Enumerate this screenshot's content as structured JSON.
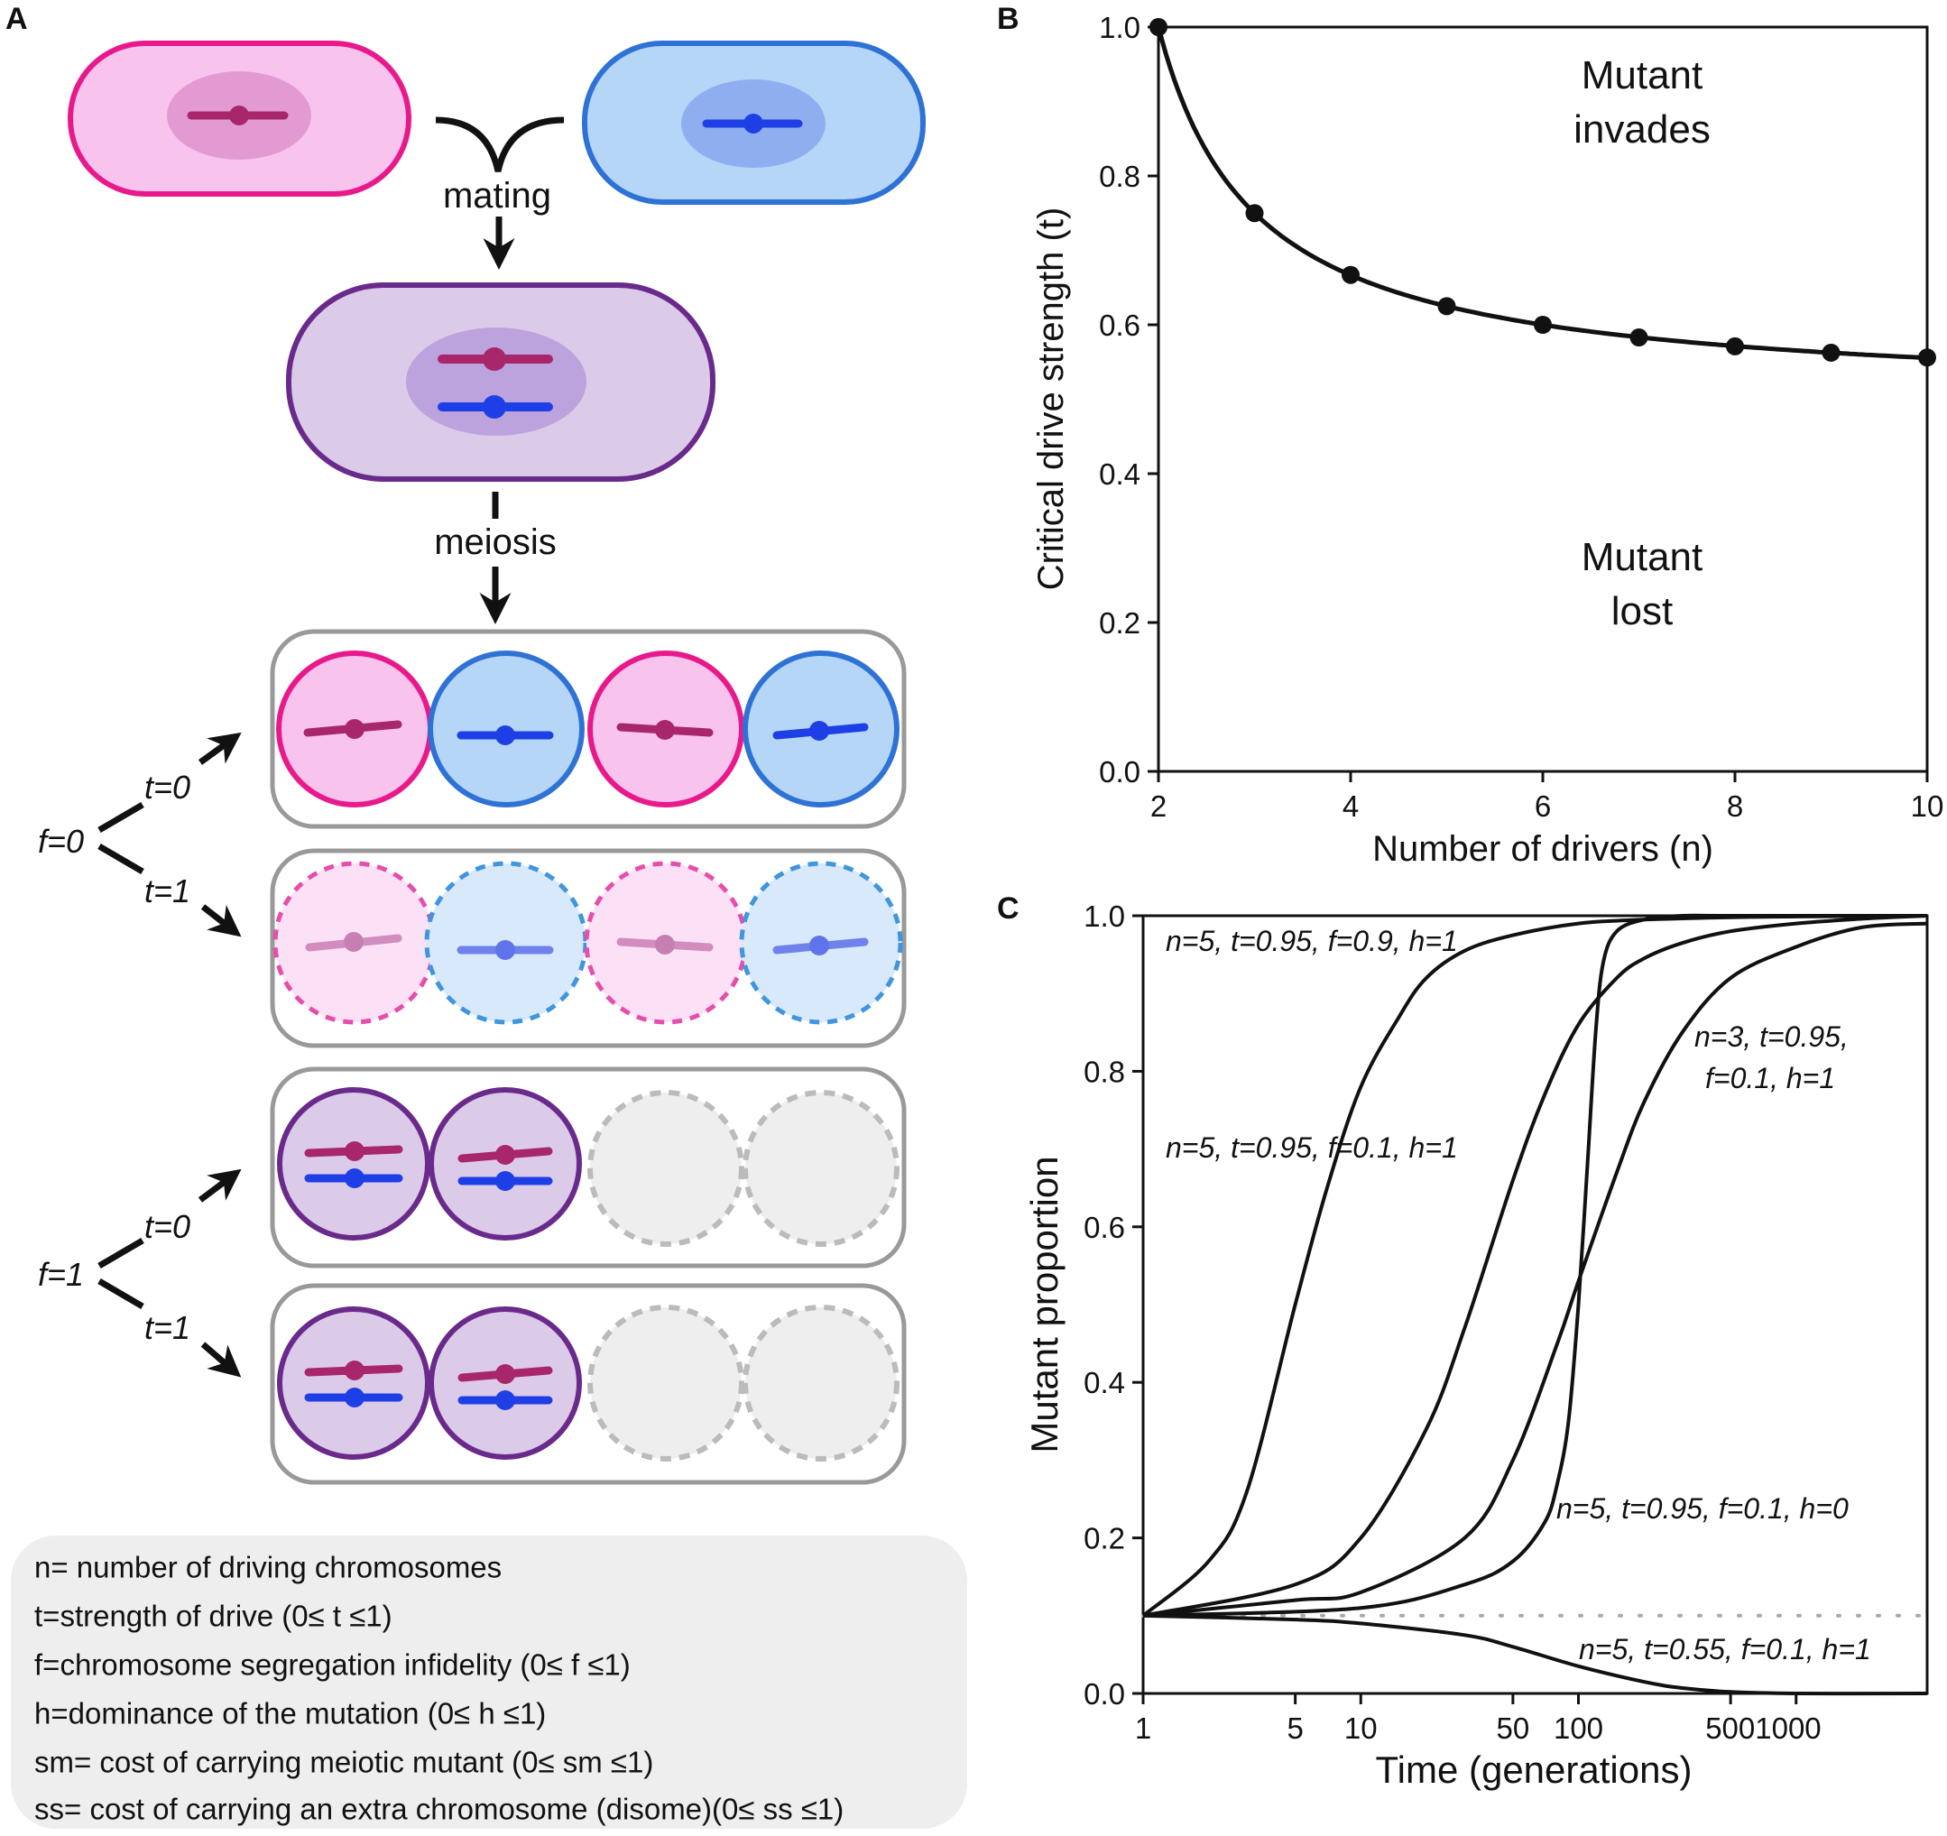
{
  "panel_a": {
    "label": "A",
    "mating": "mating",
    "meiosis": "meiosis",
    "branches": [
      {
        "f": "f=0",
        "t_top": "t=0",
        "t_bottom": "t=1"
      },
      {
        "f": "f=1",
        "t_top": "t=0",
        "t_bottom": "t=1"
      }
    ],
    "legend": [
      "n= number of driving chromosomes",
      "t=strength of drive (0≤ t ≤1)",
      "f=chromosome segregation infidelity (0≤ f ≤1)",
      "h=dominance of the mutation (0≤ h ≤1)",
      "sm= cost of carrying meiotic mutant (0≤ sm ≤1)",
      "ss= cost of carrying an extra chromosome (disome)(0≤ ss ≤1)"
    ],
    "colors": {
      "pink": "#e8198a",
      "pink_fill": "#f8c4ee",
      "pink_chrom": "#a8266a",
      "blue": "#2f72d6",
      "blue_fill": "#b6d6f8",
      "blue_chrom": "#1f3fe6",
      "purple": "#6a2a8c",
      "purple_fill": "#dccbe8",
      "grey": "#999999",
      "grey_fill": "#eeeeee"
    }
  },
  "panel_b": {
    "label": "B",
    "annotation_upper": [
      "Mutant",
      "invades"
    ],
    "annotation_lower": [
      "Mutant",
      "lost"
    ]
  },
  "panel_c": {
    "label": "C",
    "curve_labels": [
      "n=5, t=0.95, f=0.9, h=1",
      "n=5, t=0.95, f=0.1, h=1",
      "n=3, t=0.95,",
      "f=0.1, h=1",
      "n=5, t=0.95, f=0.1, h=0",
      "n=5, t=0.55, f=0.1, h=1"
    ]
  },
  "chart_data": [
    {
      "type": "scatter",
      "title": "",
      "xlabel": "Number of drivers (n)",
      "ylabel": "Critical drive strength (t)",
      "xlim": [
        2,
        10
      ],
      "ylim": [
        0,
        1
      ],
      "xticks": [
        "2",
        "4",
        "6",
        "8",
        "10"
      ],
      "yticks": [
        "0.0",
        "0.2",
        "0.4",
        "0.6",
        "0.8",
        "1.0"
      ],
      "x": [
        2,
        3,
        4,
        5,
        6,
        7,
        8,
        9,
        10
      ],
      "y": [
        1.0,
        0.75,
        0.667,
        0.625,
        0.6,
        0.583,
        0.571,
        0.5625,
        0.556
      ],
      "line": "smooth fit through points",
      "grid": false
    },
    {
      "type": "line",
      "title": "",
      "xlabel": "Time (generations)",
      "ylabel": "Mutant proportion",
      "xscale": "log",
      "xlim": [
        1,
        4000
      ],
      "ylim": [
        0,
        1
      ],
      "xticks": [
        "1",
        "5",
        "10",
        "50",
        "100",
        "5001000"
      ],
      "xtick_values": [
        1,
        5,
        10,
        50,
        100,
        500,
        1000
      ],
      "yticks": [
        "0.0",
        "0.2",
        "0.4",
        "0.6",
        "0.8",
        "1.0"
      ],
      "grid": false,
      "baseline": {
        "y": 0.1,
        "style": "dotted grey"
      },
      "series": [
        {
          "x": [
            1,
            2,
            3,
            5,
            7,
            10,
            15,
            20,
            30,
            50,
            100,
            200,
            500,
            1000,
            4000
          ],
          "y": [
            0.1,
            0.17,
            0.26,
            0.5,
            0.65,
            0.78,
            0.87,
            0.92,
            0.955,
            0.975,
            0.99,
            0.995,
            0.998,
            0.999,
            1.0
          ]
        },
        {
          "x": [
            1,
            5,
            10,
            20,
            30,
            50,
            70,
            100,
            150,
            200,
            300,
            500,
            1000,
            2000,
            4000
          ],
          "y": [
            0.1,
            0.14,
            0.2,
            0.34,
            0.47,
            0.66,
            0.77,
            0.86,
            0.92,
            0.945,
            0.965,
            0.98,
            0.99,
            0.996,
            1.0
          ]
        },
        {
          "x": [
            1,
            5,
            10,
            30,
            50,
            80,
            100,
            150,
            200,
            300,
            500,
            1000,
            2000,
            4000
          ],
          "y": [
            0.1,
            0.12,
            0.13,
            0.2,
            0.3,
            0.45,
            0.53,
            0.67,
            0.76,
            0.85,
            0.92,
            0.96,
            0.985,
            0.99
          ]
        },
        {
          "x": [
            1,
            10,
            30,
            50,
            70,
            80,
            90,
            100,
            110,
            120,
            130,
            150,
            200,
            300,
            500,
            4000
          ],
          "y": [
            0.1,
            0.11,
            0.14,
            0.17,
            0.22,
            0.27,
            0.35,
            0.5,
            0.68,
            0.85,
            0.94,
            0.98,
            0.995,
            1.0,
            1.0,
            1.0
          ]
        },
        {
          "x": [
            1,
            5,
            10,
            30,
            50,
            100,
            200,
            300,
            500,
            1000,
            4000
          ],
          "y": [
            0.1,
            0.095,
            0.09,
            0.075,
            0.06,
            0.035,
            0.015,
            0.007,
            0.002,
            0.0,
            0.0
          ]
        }
      ]
    }
  ]
}
